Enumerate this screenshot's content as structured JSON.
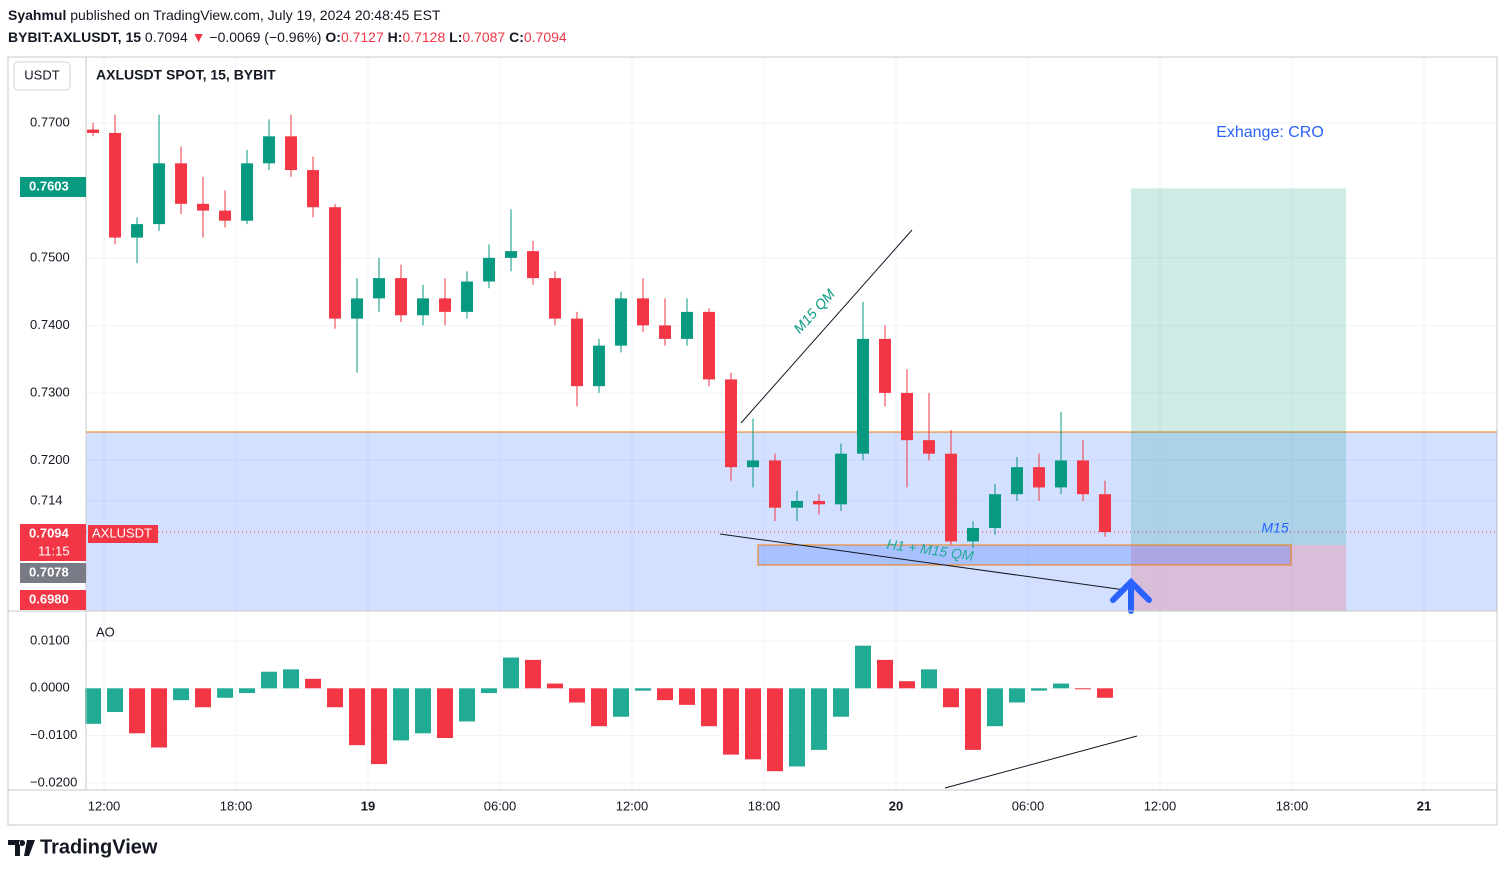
{
  "header": {
    "author": "Syahmul",
    "published": "published on TradingView.com, July 19, 2024 20:48:45 EST",
    "symbol": "BYBIT:AXLUSDT, 15",
    "last": 0.7094,
    "arrow": "▼",
    "change": "−0.0069 (−0.96%)",
    "o_label": "O:",
    "o": 0.7127,
    "h_label": "H:",
    "h": 0.7128,
    "l_label": "L:",
    "l": 0.7087,
    "c_label": "C:",
    "c": 0.7094
  },
  "footer": {
    "brand": "TradingView"
  },
  "chart_data": {
    "type": "candlestick",
    "title": "AXLUSDT SPOT, 15, BYBIT",
    "currency": "USDT",
    "symbol_label": "AXLUSDT",
    "x": [
      -0.5,
      0.5,
      1.5,
      2.5,
      3.5,
      4.5,
      5.5,
      6.5,
      7.5,
      8.5,
      9.5,
      10.5,
      11.5,
      12.5,
      13.5,
      14.5,
      15.5,
      16.5,
      17.5,
      18.5,
      19.5,
      20.5,
      21.5,
      22.5,
      23.5,
      24.5,
      25.5,
      26.5,
      27.5,
      28.5,
      29.5,
      30.5,
      31.5,
      32.5,
      33.5,
      34.5,
      35.5,
      36.5,
      37.5,
      38.5,
      39.5,
      40.5,
      41.5,
      42.5,
      43.5,
      44.5,
      45.5
    ],
    "open": [
      0.769,
      0.7685,
      0.753,
      0.755,
      0.764,
      0.758,
      0.757,
      0.7555,
      0.764,
      0.768,
      0.763,
      0.7575,
      0.741,
      0.744,
      0.747,
      0.7415,
      0.744,
      0.742,
      0.7465,
      0.75,
      0.751,
      0.747,
      0.741,
      0.731,
      0.737,
      0.744,
      0.74,
      0.738,
      0.742,
      0.732,
      0.719,
      0.72,
      0.713,
      0.714,
      0.7135,
      0.721,
      0.738,
      0.73,
      0.723,
      0.721,
      0.708,
      0.71,
      0.715,
      0.719,
      0.716,
      0.72,
      0.715
    ],
    "high": [
      0.77,
      0.7712,
      0.756,
      0.7712,
      0.7665,
      0.762,
      0.76,
      0.766,
      0.7705,
      0.7712,
      0.765,
      0.758,
      0.747,
      0.75,
      0.749,
      0.746,
      0.747,
      0.748,
      0.752,
      0.7572,
      0.7525,
      0.748,
      0.742,
      0.738,
      0.745,
      0.747,
      0.744,
      0.744,
      0.7425,
      0.733,
      0.7262,
      0.721,
      0.7155,
      0.715,
      0.7225,
      0.7435,
      0.74,
      0.7335,
      0.73,
      0.7245,
      0.711,
      0.7165,
      0.7205,
      0.721,
      0.7272,
      0.723,
      0.717
    ],
    "low": [
      0.768,
      0.752,
      0.7492,
      0.754,
      0.7565,
      0.753,
      0.7545,
      0.755,
      0.763,
      0.762,
      0.756,
      0.7395,
      0.733,
      0.742,
      0.7405,
      0.74,
      0.74,
      0.741,
      0.7455,
      0.748,
      0.746,
      0.74,
      0.728,
      0.73,
      0.736,
      0.739,
      0.737,
      0.737,
      0.731,
      0.717,
      0.716,
      0.711,
      0.711,
      0.712,
      0.7125,
      0.72,
      0.728,
      0.716,
      0.72,
      0.7075,
      0.707,
      0.709,
      0.714,
      0.714,
      0.715,
      0.714,
      0.7087
    ],
    "close": [
      0.7685,
      0.753,
      0.755,
      0.764,
      0.758,
      0.757,
      0.7555,
      0.764,
      0.768,
      0.763,
      0.7575,
      0.741,
      0.744,
      0.747,
      0.7415,
      0.744,
      0.742,
      0.7465,
      0.75,
      0.751,
      0.747,
      0.741,
      0.731,
      0.737,
      0.744,
      0.74,
      0.738,
      0.742,
      0.732,
      0.719,
      0.72,
      0.713,
      0.714,
      0.7135,
      0.721,
      0.738,
      0.73,
      0.723,
      0.721,
      0.708,
      0.71,
      0.715,
      0.719,
      0.716,
      0.72,
      0.715,
      0.7094
    ],
    "up_color": "#089981",
    "down_color": "#f23645",
    "xlim": [
      -0.82,
      63.32
    ],
    "xticks": [
      {
        "value": 0,
        "label": "12:00"
      },
      {
        "value": 6,
        "label": "18:00"
      },
      {
        "value": 12,
        "label": "19"
      },
      {
        "value": 18,
        "label": "06:00"
      },
      {
        "value": 24,
        "label": "12:00"
      },
      {
        "value": 30,
        "label": "18:00"
      },
      {
        "value": 36,
        "label": "20"
      },
      {
        "value": 42,
        "label": "06:00"
      },
      {
        "value": 48,
        "label": "12:00"
      },
      {
        "value": 54,
        "label": "18:00"
      },
      {
        "value": 60,
        "label": "21"
      }
    ],
    "ylim": [
      0.6977,
      0.7796
    ],
    "yticks": [
      {
        "value": 0.77,
        "label": "0.7700"
      },
      {
        "value": 0.75,
        "label": "0.7500"
      },
      {
        "value": 0.74,
        "label": "0.7400"
      },
      {
        "value": 0.73,
        "label": "0.7300"
      },
      {
        "value": 0.72,
        "label": "0.7200"
      },
      0.714
    ],
    "grid": true,
    "price_markers": [
      {
        "value": 0.7603,
        "color": "#089981"
      },
      {
        "value": 0.7094,
        "color": "#f23645",
        "countdown": "11:15"
      },
      {
        "value": 0.7078,
        "color": "#787b86"
      },
      {
        "value": 0.698,
        "label": "0.6980",
        "color": "#f23645"
      }
    ],
    "annotations": [
      "M15 QM",
      "H1 + M15 QM",
      "M15",
      "Exhange: CRO"
    ],
    "indicator": {
      "type": "bar",
      "name": "AO",
      "values": [
        -0.0075,
        -0.005,
        -0.0095,
        -0.0125,
        -0.0025,
        -0.004,
        -0.002,
        -0.001,
        0.0035,
        0.004,
        0.002,
        -0.004,
        -0.012,
        -0.016,
        -0.011,
        -0.0095,
        -0.0105,
        -0.007,
        -0.001,
        0.0065,
        0.006,
        0.001,
        -0.003,
        -0.008,
        -0.006,
        -0.0005,
        -0.0025,
        -0.0035,
        -0.008,
        -0.014,
        -0.015,
        -0.0175,
        -0.0165,
        -0.013,
        -0.006,
        0.009,
        0.006,
        0.0015,
        0.004,
        -0.004,
        -0.013,
        -0.008,
        -0.003,
        -0.0005,
        0.001,
        0,
        -0.002
      ],
      "up_color": "#22ab94",
      "down_color": "#f23645",
      "ylim": [
        -0.02147,
        0.01632
      ],
      "yticks": [
        {
          "value": 0.01,
          "label": "0.0100"
        },
        {
          "value": 0,
          "label": "0.0000"
        },
        {
          "value": -0.01,
          "label": "−0.0100"
        },
        {
          "value": -0.02,
          "label": "−0.0200"
        }
      ]
    }
  }
}
